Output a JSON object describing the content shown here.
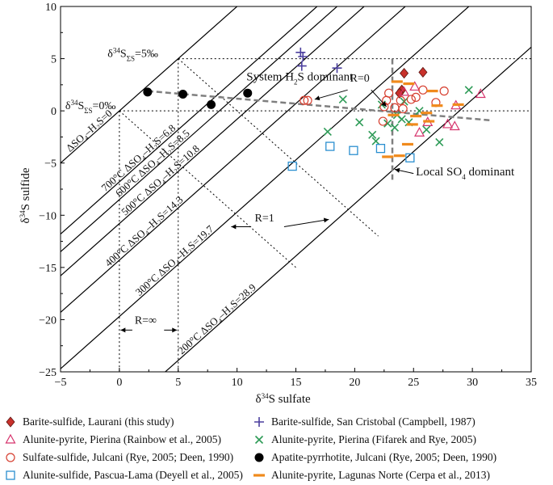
{
  "chart_data": {
    "type": "scatter",
    "xlabel_prefix": "δ",
    "xlabel_sup": "34",
    "xlabel_rest": "S sulfate",
    "ylabel_prefix": "δ",
    "ylabel_sup": "34",
    "ylabel_rest": "S sulfide",
    "xlim": [
      -5,
      35
    ],
    "ylim": [
      -25,
      10
    ],
    "xticks": [
      -5,
      0,
      5,
      10,
      15,
      20,
      25,
      30,
      35
    ],
    "yticks": [
      -25,
      -20,
      -15,
      -10,
      -5,
      0,
      5,
      10
    ],
    "xtick_labels": [
      "−5",
      "0",
      "5",
      "10",
      "15",
      "20",
      "25",
      "30",
      "35"
    ],
    "ytick_labels": [
      "−25",
      "−20",
      "−15",
      "−10",
      "−5",
      "0",
      "5",
      "10"
    ],
    "fractionation_lines": [
      {
        "delta": 0,
        "label": "ΔSO₄–H₂S=0"
      },
      {
        "delta": 6.8,
        "label": "700°C ΔSO₄–H₂S=6.8"
      },
      {
        "delta": 8.5,
        "label": "600°C ΔSO₄–H₂S=8.5"
      },
      {
        "delta": 10.8,
        "label": "500°C ΔSO₄–H₂S=10.8"
      },
      {
        "delta": 14.3,
        "label": "400°C ΔSO₄–H₂S=14.3"
      },
      {
        "delta": 19.7,
        "label": "300°C ΔSO₄–H₂S=19.7"
      },
      {
        "delta": 28.9,
        "label": "200°C ΔSO₄–H₂S=28.9"
      }
    ],
    "annotations": {
      "sigma5": "δ34SΣS=5‰",
      "sigma0": "δ34SΣS=0‰",
      "h2s_dominant": "System H2S dominant",
      "so4_dominant": "Local SO4 dominant",
      "r0": "R=0",
      "r1": "R=1",
      "rinf": "R=∞"
    },
    "series": [
      {
        "name": "Barite-sulfide, Laurani (this study)",
        "marker": "diamond",
        "color": "#c8312b",
        "points": [
          [
            24.0,
            2.0
          ],
          [
            24.2,
            3.6
          ],
          [
            25.8,
            3.7
          ],
          [
            23.8,
            1.7
          ]
        ]
      },
      {
        "name": "Barite-sulfide, San Cristobal (Campbell, 1987)",
        "marker": "plus",
        "color": "#4b3f9e",
        "points": [
          [
            15.4,
            5.6
          ],
          [
            15.6,
            5.2
          ],
          [
            15.5,
            4.3
          ],
          [
            18.5,
            4.1
          ]
        ]
      },
      {
        "name": "Alunite-pyrite, Pierina (Rainbow et al., 2005)",
        "marker": "triangle",
        "color": "#d6336c",
        "points": [
          [
            24.2,
            1.8
          ],
          [
            25.1,
            2.3
          ],
          [
            26.2,
            -1.1
          ],
          [
            25.5,
            -2.1
          ],
          [
            27.9,
            -1.3
          ],
          [
            28.5,
            -1.5
          ],
          [
            28.6,
            0.5
          ],
          [
            30.7,
            1.6
          ]
        ]
      },
      {
        "name": "Alunite-pyrite, Pierina (Fifarek and Rye, 2005)",
        "marker": "x",
        "color": "#2e9b57",
        "points": [
          [
            17.7,
            -2.0
          ],
          [
            19.0,
            1.1
          ],
          [
            20.4,
            -1.1
          ],
          [
            21.5,
            -2.3
          ],
          [
            21.8,
            -2.9
          ],
          [
            22.3,
            0.6
          ],
          [
            22.8,
            -1.2
          ],
          [
            23.4,
            -1.6
          ],
          [
            23.6,
            -0.4
          ],
          [
            24.0,
            -0.8
          ],
          [
            24.2,
            0.9
          ],
          [
            24.6,
            -1.1
          ],
          [
            25.5,
            0.0
          ],
          [
            26.1,
            -1.8
          ],
          [
            27.2,
            -3.0
          ],
          [
            29.7,
            2.0
          ]
        ]
      },
      {
        "name": "Sulfate-sulfide, Julcani (Rye, 2005; Deen, 1990)",
        "marker": "circle",
        "color": "#d63e2f",
        "points": [
          [
            15.7,
            1.0
          ],
          [
            16.0,
            1.0
          ],
          [
            22.4,
            -1.0
          ],
          [
            22.5,
            0.4
          ],
          [
            22.7,
            1.0
          ],
          [
            22.9,
            1.7
          ],
          [
            23.4,
            0.3
          ],
          [
            23.9,
            1.0
          ],
          [
            24.1,
            0.2
          ],
          [
            24.8,
            1.1
          ],
          [
            25.2,
            1.3
          ],
          [
            25.8,
            2.0
          ],
          [
            26.9,
            0.8
          ],
          [
            27.6,
            1.9
          ]
        ]
      },
      {
        "name": "Apatite-pyrrhotite, Julcani (Rye, 2005; Deen, 1990)",
        "marker": "filledcircle",
        "color": "#000000",
        "points": [
          [
            2.4,
            1.8
          ],
          [
            5.4,
            1.6
          ],
          [
            7.8,
            0.6
          ],
          [
            10.9,
            1.7
          ]
        ]
      },
      {
        "name": "Alunite-sulfide, Pascua-Lama (Deyell et al., 2005)",
        "marker": "square",
        "color": "#2b8fd0",
        "points": [
          [
            14.7,
            -5.3
          ],
          [
            17.9,
            -3.4
          ],
          [
            19.9,
            -3.8
          ],
          [
            22.2,
            -3.6
          ],
          [
            24.7,
            -4.5
          ]
        ]
      },
      {
        "name": "Alunite-pyrite, Lagunas Norte (Cerpa et al., 2013)",
        "marker": "dash",
        "color": "#f08a1c",
        "points": [
          [
            23.8,
            -4.3
          ],
          [
            24.5,
            -3.2
          ],
          [
            25.2,
            -0.5
          ],
          [
            24.9,
            -1.3
          ],
          [
            26.3,
            -1.0
          ],
          [
            26.6,
            1.9
          ],
          [
            27.0,
            0.5
          ],
          [
            22.8,
            -4.4
          ],
          [
            24.6,
            2.6
          ],
          [
            23.3,
            -0.4
          ],
          [
            26.1,
            -0.2
          ],
          [
            28.8,
            0.6
          ],
          [
            23.6,
            2.8
          ]
        ]
      }
    ]
  }
}
